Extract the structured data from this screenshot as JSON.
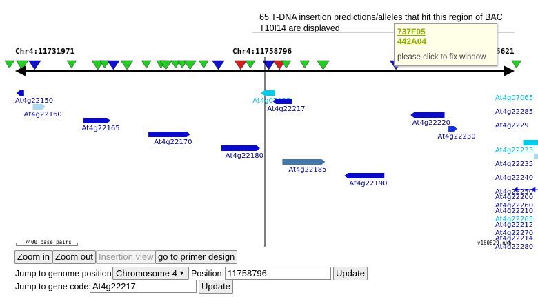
{
  "info": {
    "text": "65 T-DNA insertion predictions/alleles that hit this region of BAC T10I14 are displayed."
  },
  "popup": {
    "links": [
      "737F05",
      "442A04"
    ],
    "note": "please click to fix window"
  },
  "positions": {
    "left": "Chr4:11731971",
    "center": "Chr4:11758796",
    "right_partial": "5621"
  },
  "scale": {
    "label": "7400 base pairs"
  },
  "version": "v160829-nkb",
  "colors": {
    "insertion_green": "#22cc22",
    "insertion_blue": "#1111cc",
    "insertion_red": "#cc2222",
    "gene_dark": "#0a0acc",
    "gene_light": "#aad8ec",
    "gene_cyan": "#00ccee",
    "gene_label_cyan": "#00bbdd",
    "gene_label_dark": "#000099"
  },
  "insertions": [
    {
      "color": "green",
      "kb": 11731100
    },
    {
      "color": "green",
      "kb": 11732400
    },
    {
      "color": "blue",
      "kb": 11733700
    },
    {
      "color": "green",
      "kb": 11737500
    },
    {
      "color": "green",
      "kb": 11740200
    },
    {
      "color": "green",
      "kb": 11740900
    },
    {
      "color": "blue",
      "kb": 11741800
    },
    {
      "color": "green",
      "kb": 11743200
    },
    {
      "color": "green",
      "kb": 11745200
    },
    {
      "color": "green",
      "kb": 11746700
    },
    {
      "color": "green",
      "kb": 11747200
    },
    {
      "color": "green",
      "kb": 11748200
    },
    {
      "color": "green",
      "kb": 11748900
    },
    {
      "color": "green",
      "kb": 11749700
    },
    {
      "color": "green",
      "kb": 11751100
    },
    {
      "color": "blue",
      "kb": 11752600
    },
    {
      "color": "red",
      "kb": 11754900
    },
    {
      "color": "green",
      "kb": 11755900
    },
    {
      "color": "blue",
      "kb": 11757800
    },
    {
      "color": "red",
      "kb": 11758900
    },
    {
      "color": "green",
      "kb": 11759600
    },
    {
      "color": "green",
      "kb": 11761500
    },
    {
      "color": "green",
      "kb": 11763400
    },
    {
      "color": "blue",
      "kb": 11770900
    },
    {
      "color": "green",
      "kb": 11783300
    },
    {
      "color": "green",
      "kb": 11788000
    },
    {
      "color": "red",
      "kb": 11790500
    },
    {
      "color": "green",
      "kb": 11791400
    },
    {
      "color": "green",
      "kb": 11793600
    },
    {
      "color": "green",
      "kb": 11794600
    },
    {
      "color": "green",
      "kb": 11801500
    },
    {
      "color": "green",
      "kb": 11805200
    },
    {
      "color": "green",
      "kb": 11808000
    },
    {
      "color": "green",
      "kb": 11808800
    },
    {
      "color": "green",
      "kb": 11811400
    },
    {
      "color": "blue",
      "kb": 11816800
    },
    {
      "color": "blue",
      "kb": 11819900
    }
  ],
  "genes": [
    {
      "name": "At4g22150",
      "kind": "dark",
      "start": 11731800,
      "end": 11732600,
      "strand": "-",
      "row": 0
    },
    {
      "name": "At4g22160",
      "kind": "light",
      "start": 11733500,
      "end": 11734800,
      "strand": "+",
      "row": 1
    },
    {
      "name": "At4g22165",
      "kind": "dark",
      "start": 11738700,
      "end": 11741500,
      "strand": "+",
      "row": 2
    },
    {
      "name": "At4g22170",
      "kind": "dark",
      "start": 11745400,
      "end": 11749700,
      "strand": "+",
      "row": 3
    },
    {
      "name": "At4g22180",
      "kind": "dark",
      "start": 11752900,
      "end": 11756900,
      "strand": "+",
      "row": 4
    },
    {
      "name": "At4g22185",
      "kind": "steel",
      "start": 11759200,
      "end": 11763600,
      "strand": "+",
      "row": 5
    },
    {
      "name": "At4g22190",
      "kind": "dark",
      "start": 11765600,
      "end": 11769700,
      "strand": "-",
      "row": 6
    },
    {
      "name": "At4g22200",
      "kind": "split",
      "start": 11783000,
      "end": 11796100,
      "strand": "-",
      "row": 7
    },
    {
      "name": "At4g22210",
      "kind": "small",
      "start": 11795600,
      "end": 11797200,
      "strand": "+",
      "row": 8
    },
    {
      "name": "At4g22212",
      "kind": "light",
      "start": 11799000,
      "end": 11801300,
      "strand": "+",
      "row": 9
    },
    {
      "name": "At4g22214",
      "kind": "dark",
      "start": 11803100,
      "end": 11804300,
      "strand": "+",
      "row": 10
    },
    {
      "name": "At4g07055",
      "kind": "cyan",
      "start": 11757000,
      "end": 11758400,
      "strand": "-",
      "row": 0
    },
    {
      "name": "At4g22217",
      "kind": "dark",
      "start": 11758200,
      "end": 11760200,
      "strand": "-",
      "row": 1
    },
    {
      "name": "At4g22220",
      "kind": "dark",
      "start": 11772400,
      "end": 11775900,
      "strand": "-",
      "row": 2
    },
    {
      "name": "At4g22230",
      "kind": "small",
      "start": 11776300,
      "end": 11777200,
      "strand": "+",
      "row": 3
    },
    {
      "name": "At4g22233",
      "kind": "cyan",
      "start": 11784000,
      "end": 11786600,
      "strand": "+",
      "row": 4
    },
    {
      "name": "At4g22235",
      "kind": "light",
      "start": 11785100,
      "end": 11787200,
      "strand": "+",
      "row": 5
    },
    {
      "name": "At4g22240",
      "kind": "split",
      "start": 11796000,
      "end": 11799100,
      "strand": "-",
      "row": 6
    },
    {
      "name": "At4g22250",
      "kind": "dark",
      "start": 11803600,
      "end": 11807800,
      "strand": "-",
      "row": 7
    },
    {
      "name": "At4g22260",
      "kind": "split",
      "start": 11811100,
      "end": 11816300,
      "strand": "-",
      "row": 8
    },
    {
      "name": "At4g22265",
      "kind": "cyan",
      "start": 11816800,
      "end": 11817600,
      "strand": "-",
      "row": 9
    },
    {
      "name": "At4g22270",
      "kind": "split",
      "start": 11828800,
      "end": 11835000,
      "strand": "+",
      "row": 10
    },
    {
      "name": "At4g22280",
      "kind": "split",
      "start": 11837000,
      "end": 11840100,
      "strand": "-",
      "row": 11
    },
    {
      "name": "At4g07065",
      "kind": "cyan",
      "start": 11829800,
      "end": 11830600,
      "strand": "+",
      "row": 0
    },
    {
      "name": "At4g22285",
      "kind": "split",
      "start": 11841600,
      "end": 11848000,
      "strand": "-",
      "row": 1
    },
    {
      "name": "At4g2229",
      "kind": "split",
      "start": 11856800,
      "end": 11864000,
      "strand": "-",
      "row": 2
    }
  ],
  "controls": {
    "zoom_in": "Zoom in",
    "zoom_out": "Zoom out",
    "insertion_view": "Insertion view",
    "primer": "go to primer design",
    "genome_label": "Jump to genome position:",
    "chromosome": "Chromosome 4",
    "position_label": "Position:",
    "position_value": "11758796",
    "update": "Update",
    "gene_label": "Jump to gene code:",
    "gene_value": "At4g22217",
    "update2": "Update"
  }
}
